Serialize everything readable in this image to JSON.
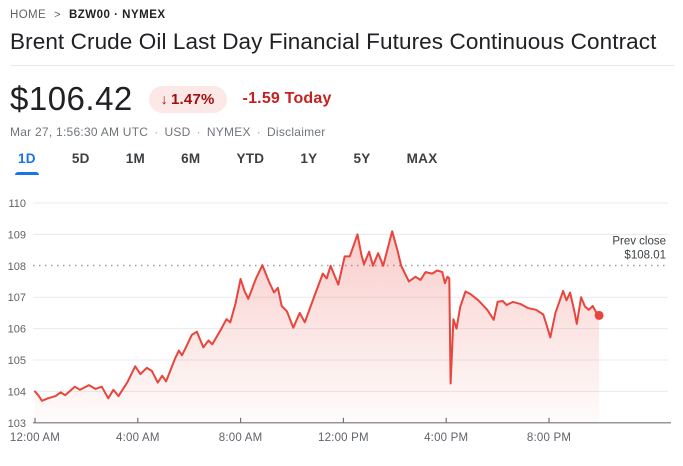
{
  "breadcrumb": {
    "home": "HOME",
    "separator": ">",
    "symbol": "BZW00 · NYMEX"
  },
  "title": "Brent Crude Oil Last Day Financial Futures Continuous Contract",
  "quote": {
    "price": "$106.42",
    "change_arrow": "↓",
    "change_percent": "1.47%",
    "change_amount": "-1.59 Today",
    "separator": "·",
    "meta_items": [
      "Mar 27, 1:56:30 AM UTC",
      "USD",
      "NYMEX",
      "Disclaimer"
    ]
  },
  "tabs": [
    {
      "label": "1D",
      "active": true
    },
    {
      "label": "5D",
      "active": false
    },
    {
      "label": "1M",
      "active": false
    },
    {
      "label": "6M",
      "active": false
    },
    {
      "label": "YTD",
      "active": false
    },
    {
      "label": "1Y",
      "active": false
    },
    {
      "label": "5Y",
      "active": false
    },
    {
      "label": "MAX",
      "active": false
    }
  ],
  "chart_data": {
    "type": "area",
    "title": "Brent Crude Oil Last Day Financial Futures intraday price",
    "x_unit": "hour_of_day",
    "ylim": [
      103,
      110
    ],
    "yticks": [
      110,
      109,
      108,
      107,
      106,
      105,
      104,
      103
    ],
    "xticks": [
      {
        "hour": 0,
        "label": "12:00 AM"
      },
      {
        "hour": 4,
        "label": "4:00 AM"
      },
      {
        "hour": 8,
        "label": "8:00 AM"
      },
      {
        "hour": 12,
        "label": "12:00 PM"
      },
      {
        "hour": 16,
        "label": "4:00 PM"
      },
      {
        "hour": 20,
        "label": "8:00 PM"
      }
    ],
    "prev_close": 108.01,
    "prev_close_label_line1": "Prev close",
    "prev_close_label_line2": "$108.01",
    "last_point": {
      "hour": 21.95,
      "value": 106.42
    },
    "grid": true,
    "colors": {
      "line": "#e8453c",
      "fill_top": "rgba(232,69,60,0.30)",
      "fill_bottom": "rgba(232,69,60,0.02)",
      "gridline": "#e8eaed",
      "axis": "#70757a",
      "tick_label": "#5f6368",
      "prev_close_line": "#9aa0a6",
      "prev_close_text": "#3c4043"
    },
    "points": [
      [
        0,
        104.0
      ],
      [
        0.15,
        103.85
      ],
      [
        0.27,
        103.7
      ],
      [
        0.5,
        103.78
      ],
      [
        0.8,
        103.85
      ],
      [
        1.0,
        103.97
      ],
      [
        1.17,
        103.88
      ],
      [
        1.55,
        104.15
      ],
      [
        1.75,
        104.05
      ],
      [
        2.1,
        104.2
      ],
      [
        2.35,
        104.08
      ],
      [
        2.6,
        104.15
      ],
      [
        2.85,
        103.78
      ],
      [
        3.05,
        104.05
      ],
      [
        3.25,
        103.85
      ],
      [
        3.6,
        104.3
      ],
      [
        3.9,
        104.8
      ],
      [
        4.1,
        104.55
      ],
      [
        4.35,
        104.75
      ],
      [
        4.55,
        104.65
      ],
      [
        4.78,
        104.28
      ],
      [
        4.95,
        104.5
      ],
      [
        5.1,
        104.32
      ],
      [
        5.45,
        105.05
      ],
      [
        5.6,
        105.3
      ],
      [
        5.72,
        105.15
      ],
      [
        5.9,
        105.45
      ],
      [
        6.1,
        105.8
      ],
      [
        6.3,
        105.9
      ],
      [
        6.55,
        105.4
      ],
      [
        6.75,
        105.62
      ],
      [
        6.9,
        105.5
      ],
      [
        7.2,
        105.92
      ],
      [
        7.45,
        106.3
      ],
      [
        7.6,
        106.2
      ],
      [
        7.8,
        106.8
      ],
      [
        8.0,
        107.58
      ],
      [
        8.15,
        107.2
      ],
      [
        8.3,
        106.95
      ],
      [
        8.6,
        107.6
      ],
      [
        8.85,
        108.02
      ],
      [
        9.1,
        107.5
      ],
      [
        9.3,
        107.15
      ],
      [
        9.45,
        107.3
      ],
      [
        9.6,
        106.72
      ],
      [
        9.8,
        106.55
      ],
      [
        10.05,
        106.03
      ],
      [
        10.3,
        106.5
      ],
      [
        10.5,
        106.2
      ],
      [
        10.9,
        107.1
      ],
      [
        11.2,
        107.75
      ],
      [
        11.35,
        107.6
      ],
      [
        11.5,
        108.0
      ],
      [
        11.65,
        107.7
      ],
      [
        11.8,
        107.4
      ],
      [
        12.05,
        108.3
      ],
      [
        12.25,
        108.3
      ],
      [
        12.55,
        109.0
      ],
      [
        12.7,
        108.35
      ],
      [
        12.8,
        108.05
      ],
      [
        13.0,
        108.45
      ],
      [
        13.15,
        108.0
      ],
      [
        13.35,
        108.4
      ],
      [
        13.55,
        108.0
      ],
      [
        13.8,
        108.8
      ],
      [
        13.9,
        109.1
      ],
      [
        14.1,
        108.5
      ],
      [
        14.25,
        108.0
      ],
      [
        14.55,
        107.5
      ],
      [
        14.8,
        107.65
      ],
      [
        15.0,
        107.55
      ],
      [
        15.2,
        107.8
      ],
      [
        15.45,
        107.75
      ],
      [
        15.65,
        107.85
      ],
      [
        15.85,
        107.8
      ],
      [
        15.95,
        107.45
      ],
      [
        16.05,
        107.65
      ],
      [
        16.12,
        107.6
      ],
      [
        16.17,
        104.25
      ],
      [
        16.28,
        106.3
      ],
      [
        16.4,
        106.0
      ],
      [
        16.55,
        106.7
      ],
      [
        16.75,
        107.18
      ],
      [
        16.95,
        107.1
      ],
      [
        17.25,
        106.9
      ],
      [
        17.6,
        106.6
      ],
      [
        17.85,
        106.28
      ],
      [
        18.0,
        106.85
      ],
      [
        18.2,
        106.88
      ],
      [
        18.35,
        106.75
      ],
      [
        18.6,
        106.85
      ],
      [
        18.9,
        106.78
      ],
      [
        19.2,
        106.65
      ],
      [
        19.5,
        106.6
      ],
      [
        19.78,
        106.45
      ],
      [
        19.95,
        106.0
      ],
      [
        20.05,
        105.72
      ],
      [
        20.25,
        106.5
      ],
      [
        20.4,
        106.85
      ],
      [
        20.55,
        107.2
      ],
      [
        20.68,
        106.9
      ],
      [
        20.82,
        107.15
      ],
      [
        21.0,
        106.5
      ],
      [
        21.08,
        106.15
      ],
      [
        21.25,
        107.0
      ],
      [
        21.4,
        106.7
      ],
      [
        21.55,
        106.6
      ],
      [
        21.7,
        106.72
      ],
      [
        21.85,
        106.5
      ],
      [
        21.95,
        106.42
      ]
    ]
  }
}
